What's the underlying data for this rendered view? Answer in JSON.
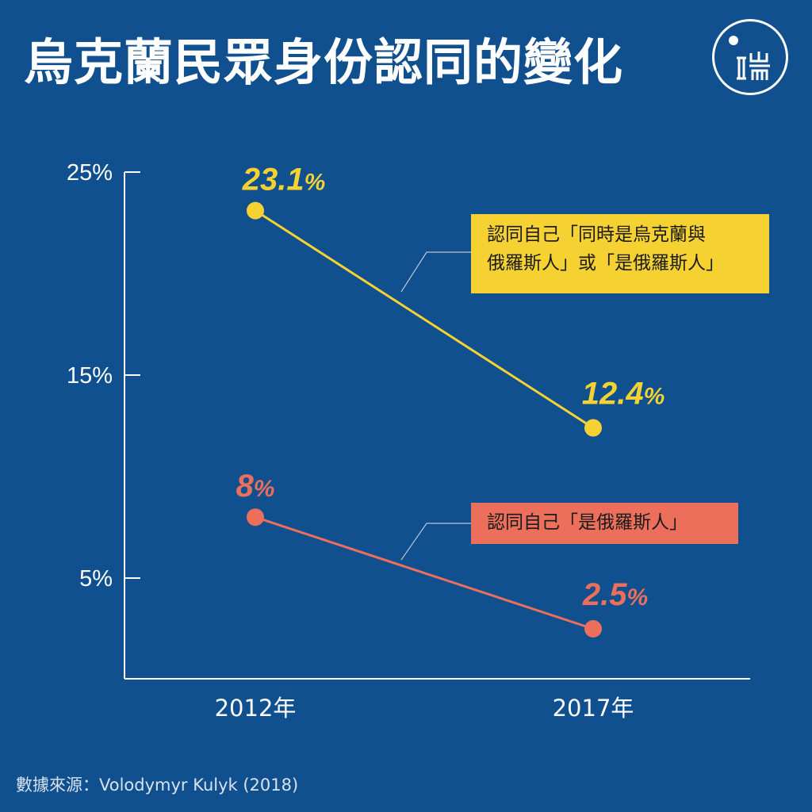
{
  "title": "烏克蘭民眾身份認同的變化",
  "source": "數據來源：Volodymyr Kulyk (2018)",
  "colors": {
    "background": "#10508f",
    "series_yellow": "#f5d131",
    "series_red": "#ec6f5c"
  },
  "chart_data": {
    "type": "line",
    "x": [
      "2012年",
      "2017年"
    ],
    "yticks": [
      "25%",
      "15%",
      "5%"
    ],
    "ytick_values": [
      25,
      15,
      5
    ],
    "ylim": [
      0,
      25
    ],
    "series": [
      {
        "name": "認同自己「同時是烏克蘭與俄羅斯人」或「是俄羅斯人」",
        "name_lines": [
          "認同自己「同時是烏克蘭與",
          "俄羅斯人」或「是俄羅斯人」"
        ],
        "values": [
          23.1,
          12.4
        ],
        "labels": [
          "23.1",
          "12.4"
        ],
        "color": "#f5d131"
      },
      {
        "name": "認同自己「是俄羅斯人」",
        "name_lines": [
          "認同自己「是俄羅斯人」"
        ],
        "values": [
          8,
          2.5
        ],
        "labels": [
          "8",
          "2.5"
        ],
        "color": "#ec6f5c"
      }
    ],
    "value_suffix": "%"
  }
}
